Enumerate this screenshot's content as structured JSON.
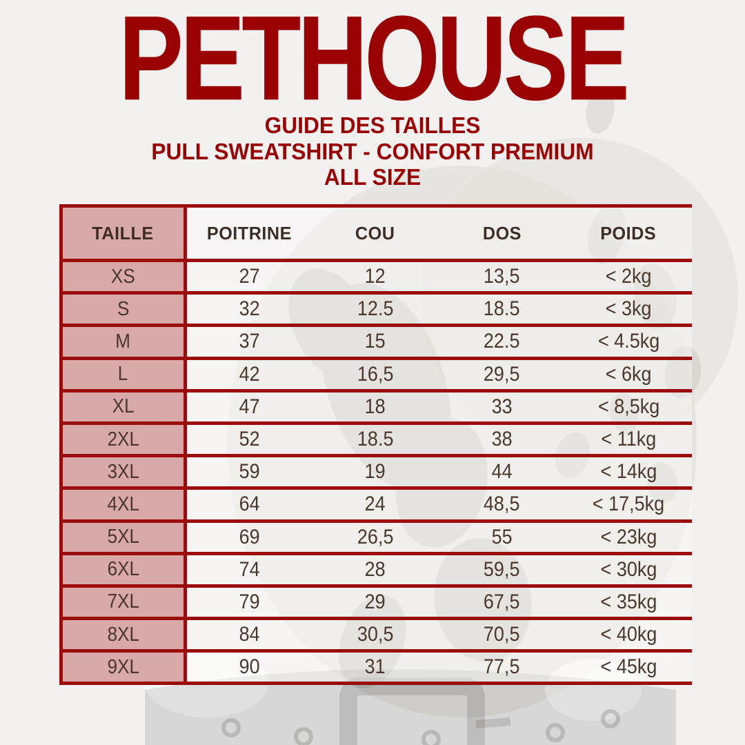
{
  "page": {
    "background_color": "#F2F1F0",
    "accent_color": "#9A0304",
    "border_color": "#9B0C0C",
    "header_text_color": "#3E2D25",
    "body_text_color": "#4A372D",
    "first_column_bg": "#D9A8A8"
  },
  "header": {
    "brand": "PETHOUSE",
    "subtitle_line1": "GUIDE DES TAILLES",
    "subtitle_line2": "PULL SWEATSHIRT - CONFORT PREMIUM",
    "subtitle_line3": "ALL SIZE"
  },
  "background_image": {
    "name": "dalmatian-dog-photo-faded",
    "detail": "black-dog-collar-with-buckle"
  },
  "table": {
    "columns": [
      "TAILLE",
      "POITRINE",
      "COU",
      "DOS",
      "POIDS"
    ],
    "rows": [
      [
        "XS",
        "27",
        "12",
        "13,5",
        "< 2kg"
      ],
      [
        "S",
        "32",
        "12.5",
        "18.5",
        "< 3kg"
      ],
      [
        "M",
        "37",
        "15",
        "22.5",
        "< 4.5kg"
      ],
      [
        "L",
        "42",
        "16,5",
        "29,5",
        "< 6kg"
      ],
      [
        "XL",
        "47",
        "18",
        "33",
        "< 8,5kg"
      ],
      [
        "2XL",
        "52",
        "18.5",
        "38",
        "< 11kg"
      ],
      [
        "3XL",
        "59",
        "19",
        "44",
        "< 14kg"
      ],
      [
        "4XL",
        "64",
        "24",
        "48,5",
        "< 17,5kg"
      ],
      [
        "5XL",
        "69",
        "26,5",
        "55",
        "< 23kg"
      ],
      [
        "6XL",
        "74",
        "28",
        "59,5",
        "< 30kg"
      ],
      [
        "7XL",
        "79",
        "29",
        "67,5",
        "< 35kg"
      ],
      [
        "8XL",
        "84",
        "30,5",
        "70,5",
        "< 40kg"
      ],
      [
        "9XL",
        "90",
        "31",
        "77,5",
        "< 45kg"
      ]
    ]
  }
}
